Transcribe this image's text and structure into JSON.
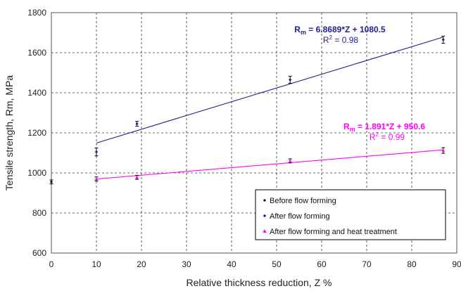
{
  "chart_data": {
    "type": "scatter",
    "xlabel": "Relative thickness reduction,  Z %",
    "ylabel": "Tensile strength, Rm, MPa",
    "xlim": [
      0,
      90
    ],
    "ylim": [
      600,
      1800
    ],
    "xticks": [
      0,
      10,
      20,
      30,
      40,
      50,
      60,
      70,
      80,
      90
    ],
    "yticks": [
      600,
      800,
      1000,
      1200,
      1400,
      1600,
      1800
    ],
    "grid": true,
    "grid_style": "dashed",
    "legend_position": "bottom-right",
    "series": [
      {
        "name": "Before flow forming",
        "color": "#000000",
        "marker": "dot",
        "points": [
          {
            "x": 0,
            "y": 955,
            "err": 10
          }
        ]
      },
      {
        "name": "After flow forming",
        "color": "#1f1f8f",
        "marker": "diamond",
        "points": [
          {
            "x": 10,
            "y": 1105,
            "err": 20
          },
          {
            "x": 19,
            "y": 1245,
            "err": 12
          },
          {
            "x": 53,
            "y": 1465,
            "err": 18
          },
          {
            "x": 87,
            "y": 1665,
            "err": 18
          }
        ],
        "trendline": {
          "slope": 6.8689,
          "intercept": 1080.5,
          "x_range": [
            10,
            87
          ]
        },
        "equation": "Rm = 6.8689*Z + 1080.5",
        "r2": "R2 = 0.98"
      },
      {
        "name": "After flow forming and heat treatment",
        "color": "#ff00ff",
        "marker": "triangle",
        "points": [
          {
            "x": 10,
            "y": 970,
            "err": 10
          },
          {
            "x": 19,
            "y": 978,
            "err": 10
          },
          {
            "x": 53,
            "y": 1060,
            "err": 10
          },
          {
            "x": 87,
            "y": 1112,
            "err": 14
          }
        ],
        "trendline": {
          "slope": 1.891,
          "intercept": 950.6,
          "x_range": [
            10,
            87
          ]
        },
        "equation": "Rm = 1.891*Z + 950.6",
        "r2": "R2 = 0.99"
      }
    ]
  }
}
